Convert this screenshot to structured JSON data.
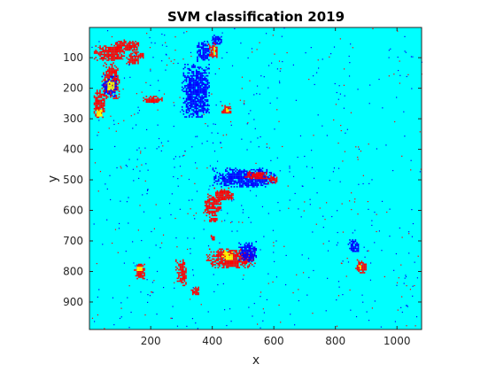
{
  "chart_data": {
    "type": "heatmap",
    "title": "SVM classification 2019",
    "xlabel": "x",
    "ylabel": "y",
    "xlim": [
      1,
      1080
    ],
    "ylim": [
      1,
      990
    ],
    "y_reversed": true,
    "xticks": [
      200,
      400,
      600,
      800,
      1000
    ],
    "yticks": [
      100,
      200,
      300,
      400,
      500,
      600,
      700,
      800,
      900
    ],
    "classes": [
      {
        "color": "#00ffff",
        "role": "background"
      },
      {
        "color": "#ff0000"
      },
      {
        "color": "#0000ff"
      },
      {
        "color": "#ffff00"
      }
    ],
    "regions": [
      {
        "class": 1,
        "x": [
          15,
          120
        ],
        "y": [
          55,
          115
        ]
      },
      {
        "class": 1,
        "x": [
          75,
          165
        ],
        "y": [
          40,
          80
        ]
      },
      {
        "class": 1,
        "x": [
          120,
          165
        ],
        "y": [
          75,
          125
        ]
      },
      {
        "class": 1,
        "x": [
          155,
          180
        ],
        "y": [
          80,
          105
        ]
      },
      {
        "class": 1,
        "x": [
          40,
          100
        ],
        "y": [
          115,
          240
        ]
      },
      {
        "class": 1,
        "x": [
          10,
          55
        ],
        "y": [
          200,
          300
        ]
      },
      {
        "class": 1,
        "x": [
          170,
          240
        ],
        "y": [
          220,
          250
        ]
      },
      {
        "class": 2,
        "x": [
          40,
          95
        ],
        "y": [
          155,
          230
        ]
      },
      {
        "class": 3,
        "x": [
          55,
          85
        ],
        "y": [
          170,
          210
        ]
      },
      {
        "class": 3,
        "x": [
          20,
          45
        ],
        "y": [
          265,
          295
        ]
      },
      {
        "class": 2,
        "x": [
          300,
          395
        ],
        "y": [
          120,
          300
        ]
      },
      {
        "class": 2,
        "x": [
          345,
          395
        ],
        "y": [
          40,
          115
        ]
      },
      {
        "class": 2,
        "x": [
          395,
          435
        ],
        "y": [
          20,
          60
        ]
      },
      {
        "class": 1,
        "x": [
          385,
          420
        ],
        "y": [
          50,
          105
        ]
      },
      {
        "class": 3,
        "x": [
          400,
          410
        ],
        "y": [
          60,
          95
        ]
      },
      {
        "class": 1,
        "x": [
          430,
          465
        ],
        "y": [
          255,
          285
        ]
      },
      {
        "class": 3,
        "x": [
          440,
          455
        ],
        "y": [
          260,
          280
        ]
      },
      {
        "class": 2,
        "x": [
          400,
          610
        ],
        "y": [
          460,
          525
        ]
      },
      {
        "class": 1,
        "x": [
          500,
          580
        ],
        "y": [
          470,
          500
        ]
      },
      {
        "class": 1,
        "x": [
          575,
          615
        ],
        "y": [
          485,
          515
        ]
      },
      {
        "class": 1,
        "x": [
          370,
          430
        ],
        "y": [
          545,
          620
        ]
      },
      {
        "class": 1,
        "x": [
          405,
          470
        ],
        "y": [
          525,
          570
        ]
      },
      {
        "class": 1,
        "x": [
          385,
          420
        ],
        "y": [
          620,
          640
        ]
      },
      {
        "class": 1,
        "x": [
          380,
          545
        ],
        "y": [
          720,
          790
        ]
      },
      {
        "class": 2,
        "x": [
          485,
          545
        ],
        "y": [
          700,
          770
        ]
      },
      {
        "class": 3,
        "x": [
          430,
          470
        ],
        "y": [
          730,
          765
        ]
      },
      {
        "class": 1,
        "x": [
          390,
          410
        ],
        "y": [
          680,
          700
        ]
      },
      {
        "class": 1,
        "x": [
          145,
          185
        ],
        "y": [
          770,
          830
        ]
      },
      {
        "class": 3,
        "x": [
          150,
          175
        ],
        "y": [
          780,
          800
        ]
      },
      {
        "class": 1,
        "x": [
          280,
          320
        ],
        "y": [
          760,
          850
        ]
      },
      {
        "class": 1,
        "x": [
          330,
          360
        ],
        "y": [
          845,
          880
        ]
      },
      {
        "class": 2,
        "x": [
          840,
          880
        ],
        "y": [
          690,
          740
        ]
      },
      {
        "class": 1,
        "x": [
          860,
          905
        ],
        "y": [
          760,
          810
        ]
      },
      {
        "class": 3,
        "x": [
          870,
          885
        ],
        "y": [
          775,
          795
        ]
      }
    ]
  }
}
